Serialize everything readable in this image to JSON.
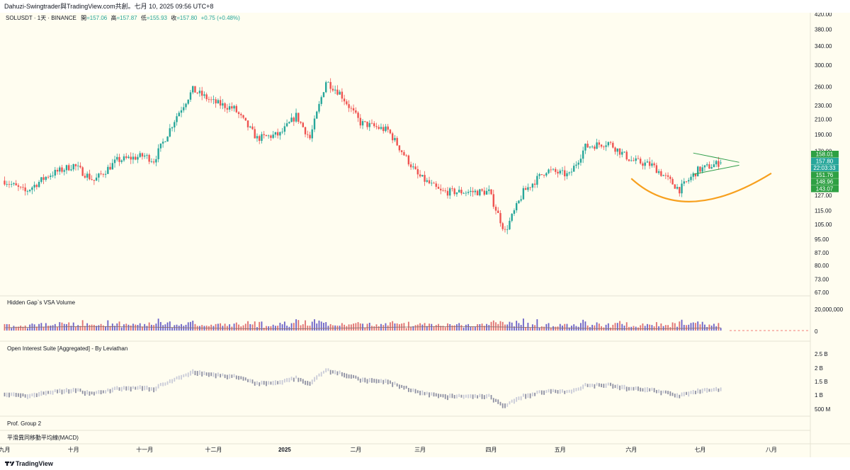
{
  "header": {
    "title": "Dahuzi-Swingtrader與TradingView.com共創。七月 10, 2025 09:56 UTC+8"
  },
  "symbol": {
    "name": "SOLUSDT · 1天 · BINANCE",
    "open_label": "開",
    "open": "=157.06",
    "high_label": "高",
    "high": "=157.87",
    "low_label": "低",
    "low": "=155.93",
    "close_label": "收",
    "close": "=157.80",
    "change": "+0.75 (+0.48%)"
  },
  "colors": {
    "background": "#fffdf0",
    "up": "#26a69a",
    "down": "#ef5350",
    "pattern_line": "#2e9e4a",
    "cup_curve": "#f7a01e",
    "volume_ma": "#8a6e6e",
    "oi_bar": "#b7b9c9"
  },
  "price_axis": {
    "ticks": [
      "420.00",
      "380.00",
      "340.00",
      "300.00",
      "260.00",
      "230.00",
      "210.00",
      "190.00",
      "170.00",
      "127.00",
      "115.00",
      "105.00",
      "95.00",
      "87.00",
      "80.00",
      "73.00",
      "67.00"
    ],
    "badges": [
      {
        "value": "158.01",
        "color": "#2ea043"
      },
      {
        "value": "157.80",
        "color": "#26a69a"
      },
      {
        "value": "22:03:33",
        "color": "#26a69a"
      },
      {
        "value": "151.76",
        "color": "#2ea043"
      },
      {
        "value": "148.96",
        "color": "#2ea043"
      },
      {
        "value": "143.07",
        "color": "#2ea043"
      }
    ]
  },
  "panes": {
    "volume": {
      "title": "Hidden Gap`s VSA Volume",
      "ticks": [
        "20,000,000",
        "0"
      ]
    },
    "open_interest": {
      "title": "Open Interest Suite [Aggregated] - By Leviathan",
      "ticks": [
        "2.5 B",
        "2 B",
        "1.5 B",
        "1 B",
        "500 M"
      ]
    },
    "group": {
      "title": "Prof. Group 2"
    },
    "macd": {
      "title": "平滑異同移動平均線(MACD)"
    }
  },
  "time_axis": {
    "labels": [
      "九月",
      "十月",
      "十一月",
      "十二月",
      "2025",
      "二月",
      "三月",
      "四月",
      "五月",
      "六月",
      "七月",
      "八月"
    ]
  },
  "footer": {
    "brand": "TradingView",
    "logo_icon": "tradingview-logo-icon"
  },
  "chart_data": {
    "type": "candlestick",
    "symbol": "SOLUSDT",
    "interval": "1天",
    "y_scale": "log",
    "ylim": [
      67,
      420
    ],
    "x_range": [
      "2024-08-30",
      "2025-08-18"
    ],
    "ohlc_last": {
      "open": 157.06,
      "high": 157.87,
      "low": 155.93,
      "close": 157.8
    },
    "anchors": [
      {
        "date": "2024-09-01",
        "close": 140
      },
      {
        "date": "2024-09-10",
        "close": 130
      },
      {
        "date": "2024-09-20",
        "close": 145
      },
      {
        "date": "2024-10-01",
        "close": 155
      },
      {
        "date": "2024-10-10",
        "close": 140
      },
      {
        "date": "2024-10-20",
        "close": 160
      },
      {
        "date": "2024-11-01",
        "close": 165
      },
      {
        "date": "2024-11-05",
        "close": 160
      },
      {
        "date": "2024-11-15",
        "close": 215
      },
      {
        "date": "2024-11-22",
        "close": 255
      },
      {
        "date": "2024-12-01",
        "close": 235
      },
      {
        "date": "2024-12-10",
        "close": 225
      },
      {
        "date": "2024-12-20",
        "close": 185
      },
      {
        "date": "2024-12-30",
        "close": 190
      },
      {
        "date": "2025-01-06",
        "close": 215
      },
      {
        "date": "2025-01-12",
        "close": 185
      },
      {
        "date": "2025-01-19",
        "close": 270
      },
      {
        "date": "2025-01-25",
        "close": 250
      },
      {
        "date": "2025-02-03",
        "close": 205
      },
      {
        "date": "2025-02-15",
        "close": 195
      },
      {
        "date": "2025-02-28",
        "close": 145
      },
      {
        "date": "2025-03-10",
        "close": 130
      },
      {
        "date": "2025-03-20",
        "close": 130
      },
      {
        "date": "2025-03-31",
        "close": 130
      },
      {
        "date": "2025-04-07",
        "close": 100
      },
      {
        "date": "2025-04-15",
        "close": 130
      },
      {
        "date": "2025-04-25",
        "close": 150
      },
      {
        "date": "2025-05-05",
        "close": 145
      },
      {
        "date": "2025-05-12",
        "close": 175
      },
      {
        "date": "2025-05-22",
        "close": 180
      },
      {
        "date": "2025-06-01",
        "close": 160
      },
      {
        "date": "2025-06-10",
        "close": 155
      },
      {
        "date": "2025-06-22",
        "close": 132
      },
      {
        "date": "2025-06-30",
        "close": 150
      },
      {
        "date": "2025-07-10",
        "close": 157.8
      }
    ],
    "volume_scale": [
      0,
      20000000
    ],
    "open_interest_scale": [
      "500 M",
      "2.5 B"
    ]
  }
}
